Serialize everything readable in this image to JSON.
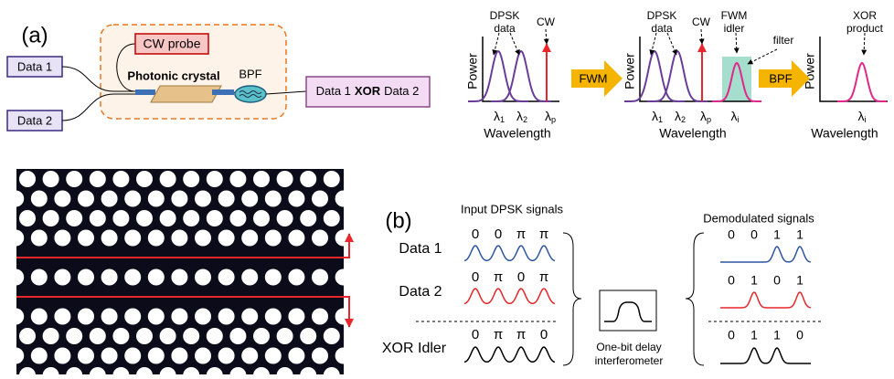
{
  "panel_a": {
    "label": "(a)",
    "inputs": [
      "Data 1",
      "Data 2"
    ],
    "probe": "CW probe",
    "device": "Photonic crystal",
    "filter": "BPF",
    "output": {
      "left": "Data 1",
      "op": "XOR",
      "right": "Data 2"
    }
  },
  "spectra": [
    {
      "y_label": "Power",
      "x_label": "Wavelength",
      "annotations": [
        {
          "lines": [
            "DPSK",
            "data"
          ]
        },
        {
          "lines": [
            "CW"
          ]
        }
      ],
      "ticks": [
        {
          "symbol": "λ",
          "sub": "1"
        },
        {
          "symbol": "λ",
          "sub": "2"
        },
        {
          "symbol": "λ",
          "sub": "p"
        }
      ]
    },
    {
      "y_label": "Power",
      "x_label": "Wavelength",
      "annotations": [
        {
          "lines": [
            "DPSK",
            "data"
          ]
        },
        {
          "lines": [
            "CW"
          ]
        },
        {
          "lines": [
            "FWM",
            "idler"
          ]
        },
        {
          "lines": [
            "filter"
          ]
        }
      ],
      "ticks": [
        {
          "symbol": "λ",
          "sub": "1"
        },
        {
          "symbol": "λ",
          "sub": "2"
        },
        {
          "symbol": "λ",
          "sub": "p"
        },
        {
          "symbol": "λ",
          "sub": "i"
        }
      ]
    },
    {
      "y_label": "Power",
      "x_label": "Wavelength",
      "annotations": [
        {
          "lines": [
            "XOR",
            "product"
          ]
        }
      ],
      "ticks": [
        {
          "symbol": "λ",
          "sub": "i"
        }
      ]
    }
  ],
  "process_arrows": [
    "FWM",
    "BPF"
  ],
  "panel_b": {
    "label": "(b)",
    "input_title": "Input DPSK signals",
    "output_title": "Demodulated signals",
    "device": [
      "One-bit delay",
      "interferometer"
    ],
    "rows": [
      {
        "name": "Data 1",
        "color": "#2f55a4",
        "input": [
          "0",
          "0",
          "π",
          "π"
        ],
        "output": [
          0,
          0,
          1,
          1
        ]
      },
      {
        "name": "Data 2",
        "color": "#e8262b",
        "input": [
          "0",
          "π",
          "0",
          "π"
        ],
        "output": [
          0,
          1,
          0,
          1
        ]
      },
      {
        "name": "XOR Idler",
        "color": "#000000",
        "input": [
          "0",
          "π",
          "π",
          "0"
        ],
        "output": [
          0,
          1,
          1,
          0
        ]
      }
    ]
  }
}
